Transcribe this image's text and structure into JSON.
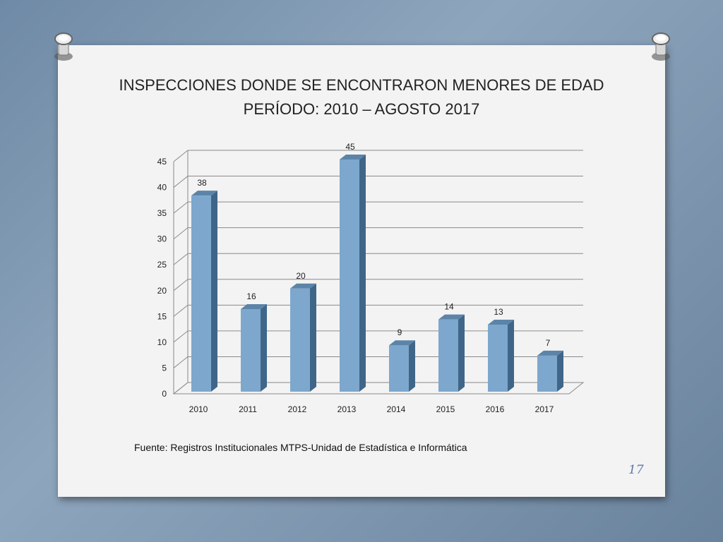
{
  "slide": {
    "title_line1": "INSPECCIONES DONDE SE ENCONTRARON MENORES DE EDAD",
    "title_line2": "PERÍODO: 2010 – AGOSTO 2017",
    "source": "Fuente: Registros Institucionales MTPS-Unidad de Estadística e Informática",
    "page_number": "17"
  },
  "colors": {
    "bar_front": "#7da7cd",
    "bar_side": "#3f6688",
    "bar_top": "#5c84a8",
    "grid": "#8a8a8a"
  },
  "chart_data": {
    "type": "bar",
    "title": "INSPECCIONES DONDE SE ENCONTRARON MENORES DE EDAD PERÍODO: 2010 – AGOSTO 2017",
    "categories": [
      "2010",
      "2011",
      "2012",
      "2013",
      "2014",
      "2015",
      "2016",
      "2017"
    ],
    "values": [
      38,
      16,
      20,
      45,
      9,
      14,
      13,
      7
    ],
    "data_labels": [
      "38",
      "16",
      "20",
      "45",
      "9",
      "14",
      "13",
      "7"
    ],
    "y_ticks": [
      "0",
      "5",
      "10",
      "15",
      "20",
      "25",
      "30",
      "35",
      "40",
      "45"
    ],
    "ylim": [
      0,
      45
    ],
    "xlabel": "",
    "ylabel": "",
    "grid": true,
    "legend": "none",
    "style": "3d-column"
  }
}
